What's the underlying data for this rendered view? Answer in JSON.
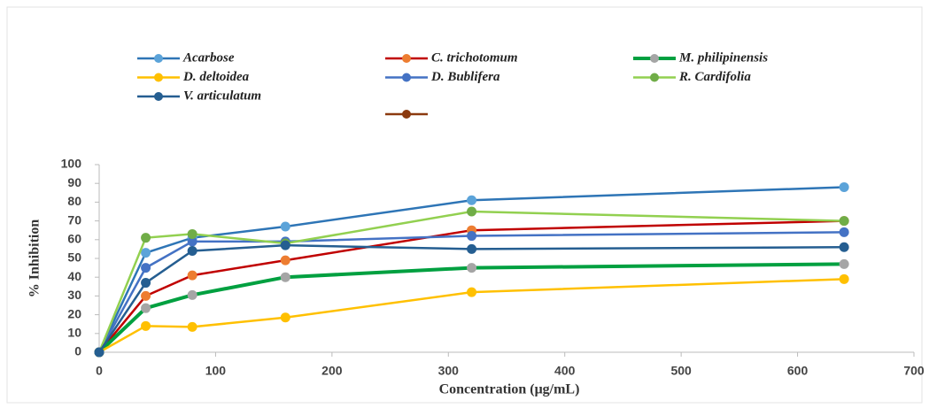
{
  "chart_data": {
    "type": "line",
    "x_label": "Concentration  (μg/mL)",
    "y_label": "% Inhibition",
    "x": [
      0,
      40,
      80,
      160,
      320,
      640
    ],
    "xlim": [
      0,
      700
    ],
    "xticks": [
      0,
      100,
      200,
      300,
      400,
      500,
      600,
      700
    ],
    "ylim": [
      0,
      100
    ],
    "yticks": [
      0,
      10,
      20,
      30,
      40,
      50,
      60,
      70,
      80,
      90,
      100
    ],
    "grid": false,
    "series": [
      {
        "name": "Acarbose",
        "color": "#2e75b6",
        "marker_color": "#5ba3d9",
        "values": [
          0,
          53,
          61,
          67,
          81,
          88
        ]
      },
      {
        "name": "C. trichotomum",
        "color": "#c00000",
        "marker_color": "#ed7d31",
        "values": [
          0,
          30,
          41,
          49,
          65,
          70
        ]
      },
      {
        "name": "M. philipinensis",
        "color": "#00a040",
        "marker_color": "#a5a5a5",
        "values": [
          0,
          23.5,
          30.5,
          40,
          45,
          47
        ]
      },
      {
        "name": "D. deltoidea",
        "color": "#ffc000",
        "marker_color": "#ffc000",
        "values": [
          0,
          14,
          13.5,
          18.5,
          32,
          39
        ]
      },
      {
        "name": "D. Bublifera",
        "color": "#4472c4",
        "marker_color": "#4472c4",
        "values": [
          0,
          45,
          59,
          59,
          62,
          64
        ]
      },
      {
        "name": "R. Cardifolia",
        "color": "#92d050",
        "marker_color": "#70ad47",
        "values": [
          0,
          61,
          63,
          58,
          75,
          70
        ]
      },
      {
        "name": "V. articulatum",
        "color": "#255e91",
        "marker_color": "#255e91",
        "values": [
          0,
          37,
          54,
          57,
          55,
          56
        ]
      }
    ]
  }
}
